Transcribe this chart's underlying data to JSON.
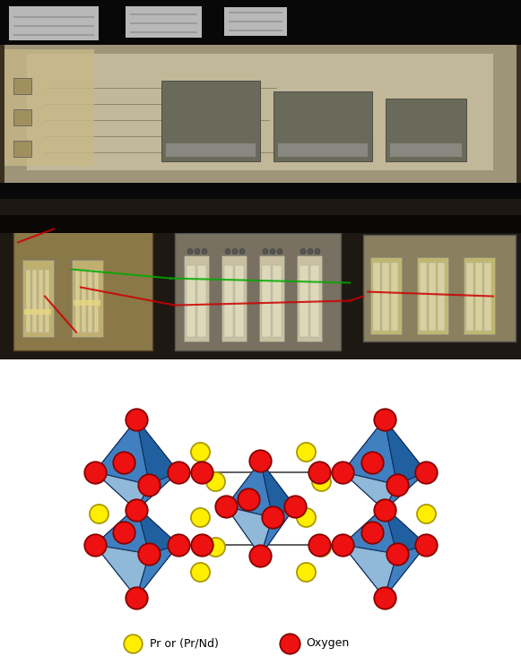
{
  "bottom_bg": "#ffffff",
  "blue_dark": "#2060A0",
  "blue_mid": "#4080C0",
  "blue_light": "#90B8D8",
  "blue_vlight": "#B0CEDE",
  "blue_edge": "#103060",
  "red_atom_color": "#EE1111",
  "yellow_atom_color": "#FFEE00",
  "red_atom_edgecolor": "#880000",
  "yellow_atom_edgecolor": "#AA9900",
  "line_color": "#333333",
  "legend_yellow_label": "Pr or (Pr/Nd)",
  "legend_red_label": "Oxygen",
  "photo_bg": "#5a4a38",
  "photo_hood_upper": "#6a6050",
  "photo_hood_light": "#a09070",
  "photo_bar": "#111008",
  "photo_lower_bg": "#2a2018"
}
